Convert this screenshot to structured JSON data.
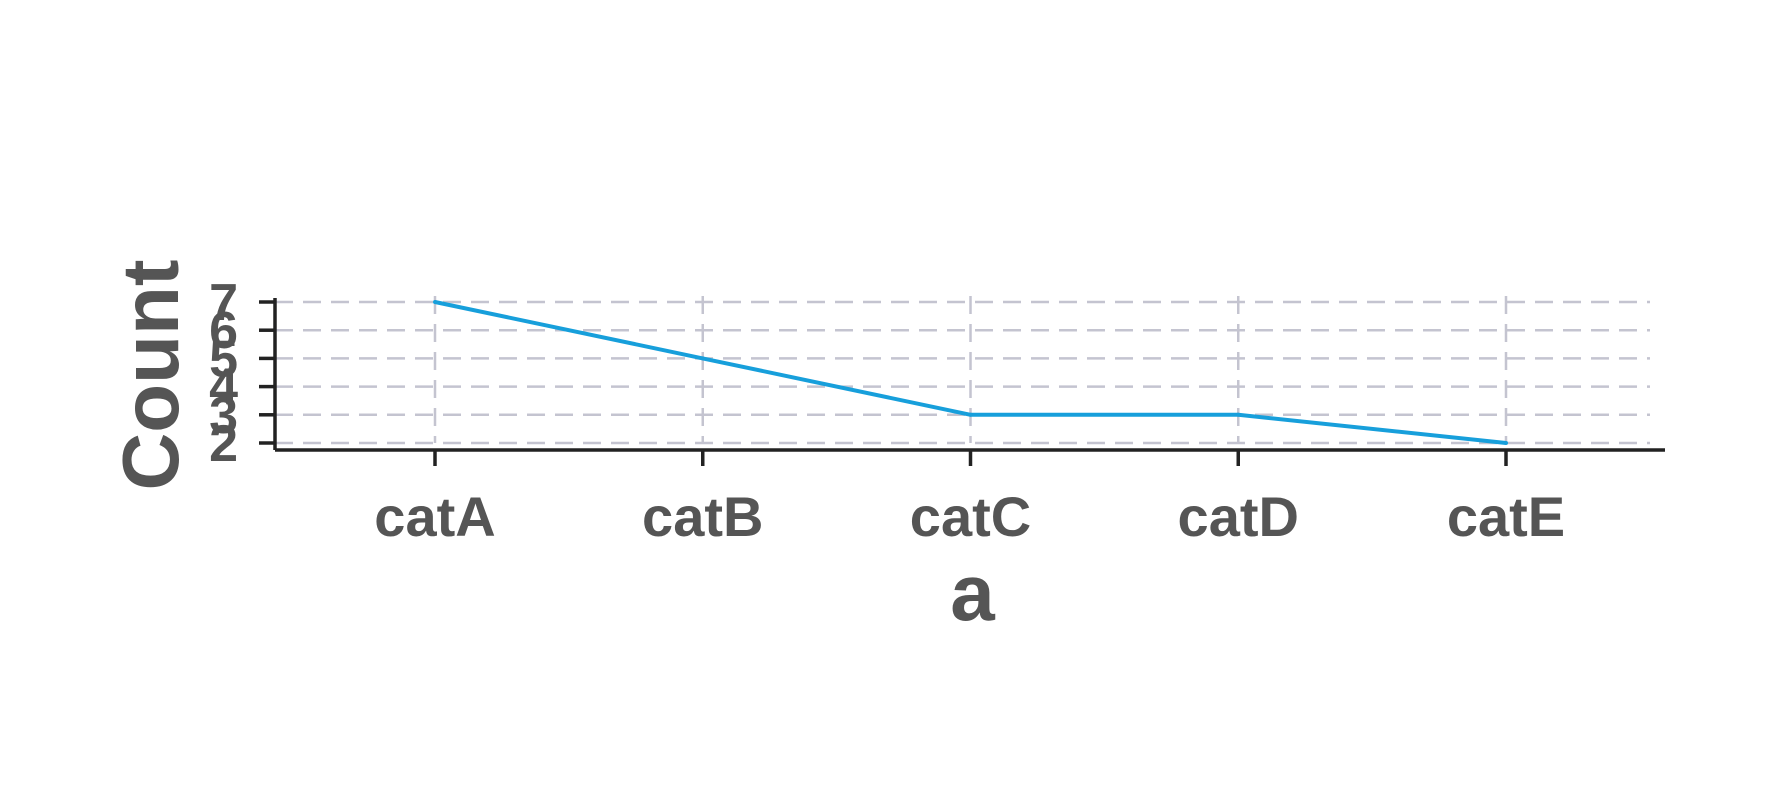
{
  "chart_data": {
    "type": "line",
    "categories": [
      "catA",
      "catB",
      "catC",
      "catD",
      "catE"
    ],
    "series": [
      {
        "values": [
          7,
          5,
          3,
          3,
          2
        ]
      }
    ],
    "xlabel": "a",
    "ylabel": "Count",
    "yticks": [
      2,
      3,
      4,
      5,
      6,
      7
    ],
    "ylim": [
      2,
      7
    ],
    "grid": true,
    "colors": {
      "line": "#179fdb",
      "text": "#555555",
      "grid": "#c4c4d0",
      "axis": "#222222"
    }
  }
}
